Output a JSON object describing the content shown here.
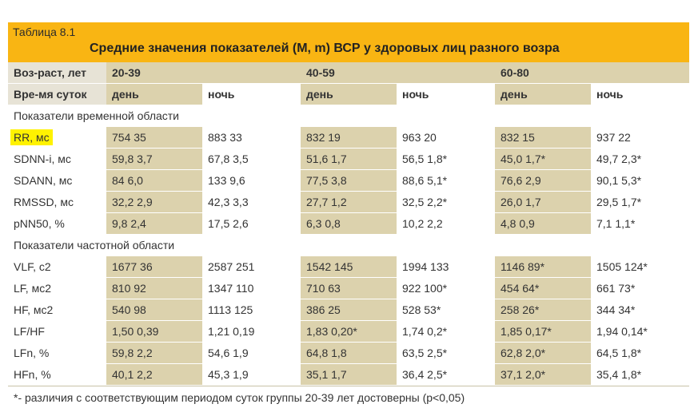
{
  "table_label": "Таблица 8.1",
  "table_title": "Средние значения показателей (M, m) ВСР у здоровых лиц разного возра",
  "header": {
    "age_label": "Воз-раст, лет",
    "age_groups": [
      "20-39",
      "40-59",
      "60-80"
    ],
    "time_label": "Вре-мя суток",
    "periods": [
      "день",
      "ночь",
      "день",
      "ночь",
      "день",
      "ночь"
    ]
  },
  "sections": [
    {
      "title": "Показатели временной области",
      "rows": [
        {
          "label": "RR, мс",
          "highlighted": true,
          "values": [
            "754 35",
            "883 33",
            "832 19",
            "963 20",
            "832 15",
            "937 22"
          ]
        },
        {
          "label": "SDNN-i, мс",
          "values": [
            "59,8 3,7",
            "67,8 3,5",
            "51,6 1,7",
            "56,5 1,8*",
            "45,0 1,7*",
            "49,7 2,3*"
          ]
        },
        {
          "label": "SDANN, мс",
          "values": [
            "84 6,0",
            "133 9,6",
            "77,5 3,8",
            "88,6 5,1*",
            "76,6 2,9",
            "90,1 5,3*"
          ]
        },
        {
          "label": "RMSSD, мс",
          "values": [
            "32,2 2,9",
            "42,3 3,3",
            "27,7 1,2",
            "32,5 2,2*",
            "26,0 1,7",
            "29,5 1,7*"
          ]
        },
        {
          "label": "pNN50, %",
          "values": [
            "9,8 2,4",
            "17,5 2,6",
            "6,3 0,8",
            "10,2 2,2",
            "4,8 0,9",
            "7,1 1,1*"
          ]
        }
      ]
    },
    {
      "title": "Показатели частотной области",
      "rows": [
        {
          "label": "VLF, с2",
          "values": [
            "1677 36",
            "2587 251",
            "1542 145",
            "1994 133",
            "1146 89*",
            "1505 124*"
          ]
        },
        {
          "label": "LF, мс2",
          "values": [
            "810 92",
            "1347 110",
            "710 63",
            "922 100*",
            "454 64*",
            "661 73*"
          ]
        },
        {
          "label": "HF, мс2",
          "values": [
            "540 98",
            "1113 125",
            "386 25",
            "528 53*",
            "258 26*",
            "344 34*"
          ]
        },
        {
          "label": "LF/HF",
          "values": [
            "1,50 0,39",
            "1,21 0,19",
            "1,83 0,20*",
            "1,74 0,2*",
            "1,85 0,17*",
            "1,94 0,14*"
          ]
        },
        {
          "label": "LFn, %",
          "values": [
            "59,8 2,2",
            "54,6 1,9",
            "64,8 1,8",
            "63,5 2,5*",
            "62,8 2,0*",
            "64,5 1,8*"
          ]
        },
        {
          "label": "HFn, %",
          "values": [
            "40,1 2,2",
            "45,3 1,9",
            "35,1 1,7",
            "36,4 2,5*",
            "37,1 2,0*",
            "35,4 1,8*"
          ]
        }
      ]
    }
  ],
  "footnote": "*- различия с соответствующим периодом суток  группы 20-39 лет достоверны (p<0,05)",
  "colors": {
    "title_bar": "#f9b513",
    "shade": "#dcd2ad",
    "highlight": "#fff200"
  }
}
